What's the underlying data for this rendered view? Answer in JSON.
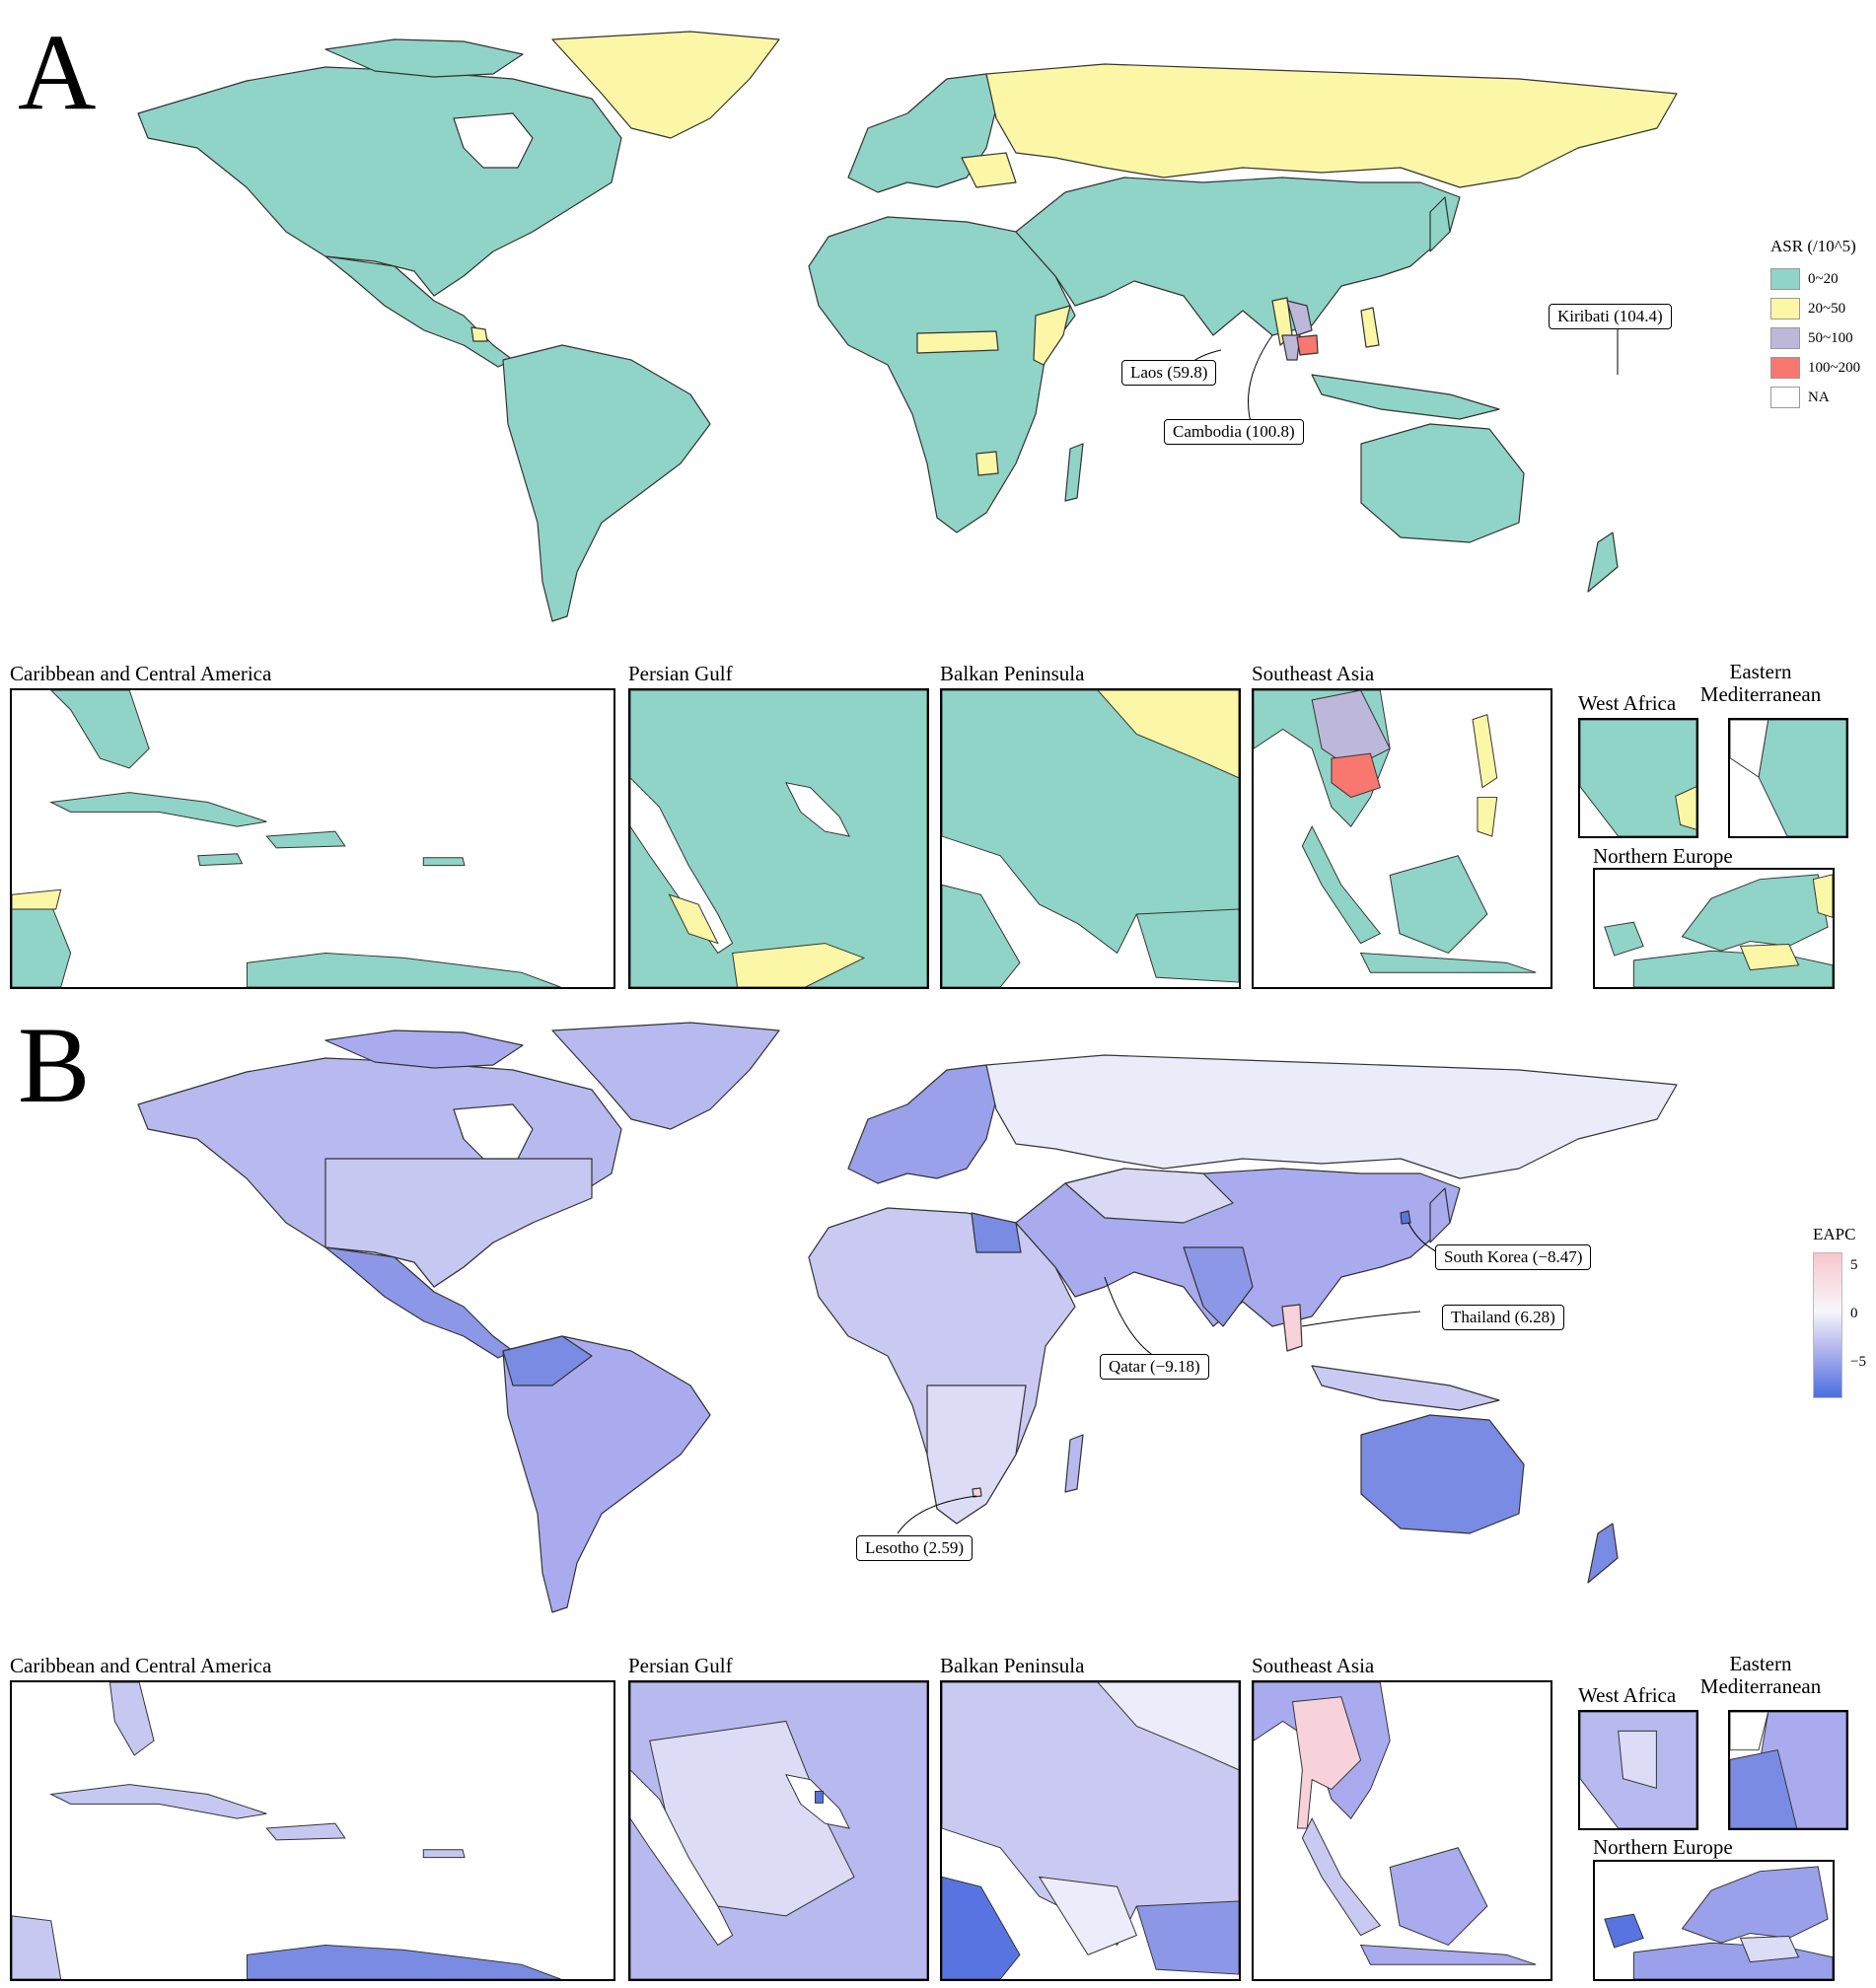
{
  "panels": [
    {
      "letter": "A",
      "legend": {
        "title": "ASR (/10^5)",
        "items": [
          {
            "label": "0~20",
            "color": "#8fd4c6"
          },
          {
            "label": "20~50",
            "color": "#fbf7a6"
          },
          {
            "label": "50~100",
            "color": "#bdb7d9"
          },
          {
            "label": "100~200",
            "color": "#f8776f"
          },
          {
            "label": "NA",
            "color": "#ffffff"
          }
        ]
      },
      "callouts": [
        {
          "label": "Laos (59.8)"
        },
        {
          "label": "Cambodia  (100.8)"
        },
        {
          "label": "Kiribati (104.4)"
        }
      ],
      "insets": [
        {
          "title": "Caribbean and Central America"
        },
        {
          "title": "Persian Gulf"
        },
        {
          "title": "Balkan Peninsula"
        },
        {
          "title": "Southeast Asia"
        },
        {
          "title": "West  Africa"
        },
        {
          "title": "Eastern Mediterranean"
        },
        {
          "title": "Northern Europe"
        }
      ]
    },
    {
      "letter": "B",
      "legend": {
        "title": "EAPC",
        "ticks": [
          "5",
          "0",
          "−5"
        ]
      },
      "callouts": [
        {
          "label": "South Korea  (−8.47)"
        },
        {
          "label": "Thailand (6.28)"
        },
        {
          "label": "Qatar (−9.18)"
        },
        {
          "label": "Lesotho (2.59)"
        }
      ],
      "insets": [
        {
          "title": "Caribbean and Central America"
        },
        {
          "title": "Persian Gulf"
        },
        {
          "title": "Balkan Peninsula"
        },
        {
          "title": "Southeast Asia"
        },
        {
          "title": "West  Africa"
        },
        {
          "title": "Eastern Mediterranean"
        },
        {
          "title": "Northern Europe"
        }
      ]
    }
  ],
  "colors": {
    "teal": "#8fd4c6",
    "yellow": "#fbf7a6",
    "lavender": "#bdb7d9",
    "red": "#f8776f",
    "blue_light": "#c9c9f2",
    "blue_mid": "#a8abee",
    "blue_dark": "#6f84e3",
    "pale": "#ececfa",
    "pink": "#f8d2da"
  }
}
